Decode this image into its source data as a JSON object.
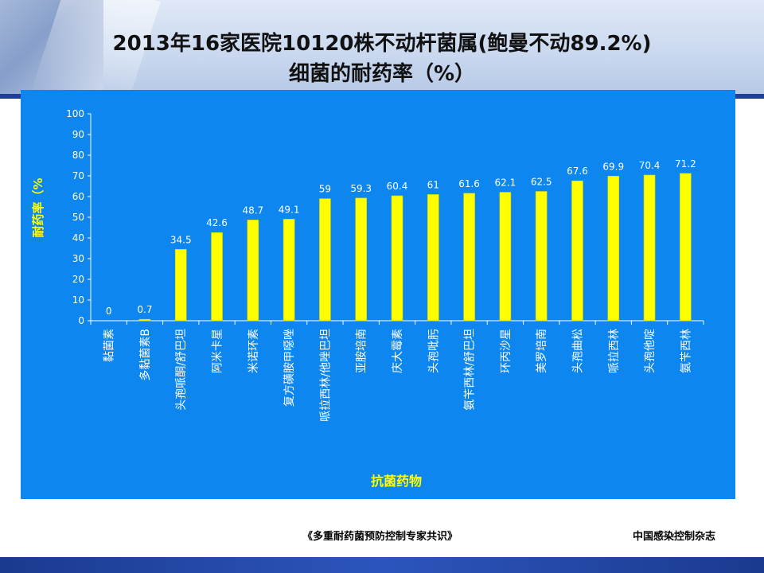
{
  "slide": {
    "title_line1": "2013年16家医院10120株不动杆菌属(鲍曼不动89.2%)",
    "title_line2": "细菌的耐药率（%）",
    "footer_source": "《多重耐药菌预防控制专家共识》",
    "footer_publisher": "中国感染控制杂志"
  },
  "colors": {
    "panel_bg": "#0e86f0",
    "bar_fill": "#ffff00",
    "axis_title": "#ffff00",
    "tick_text": "#ffffff"
  },
  "chart_data": {
    "type": "bar",
    "title": "",
    "xlabel": "抗菌药物",
    "ylabel": "耐药率（%",
    "ylim": [
      0,
      100
    ],
    "yticks": [
      0,
      10,
      20,
      30,
      40,
      50,
      60,
      70,
      80,
      90,
      100
    ],
    "grid": false,
    "legend": "none",
    "categories": [
      "黏菌素",
      "多黏菌素B",
      "头孢哌酮/舒巴坦",
      "阿米卡星",
      "米诺环素",
      "复方磺胺甲噁唑",
      "哌拉西林/他唑巴坦",
      "亚胺培南",
      "庆大霉素",
      "头孢吡肟",
      "氨苄西林/舒巴坦",
      "环丙沙星",
      "美罗培南",
      "头孢曲松",
      "哌拉西林",
      "头孢他啶",
      "氨苄西林"
    ],
    "values": [
      0,
      0.7,
      34.5,
      42.6,
      48.7,
      49.1,
      59,
      59.3,
      60.4,
      61,
      61.6,
      62.1,
      62.5,
      67.6,
      69.9,
      70.4,
      71.2
    ],
    "value_labels": [
      "0",
      "0.7",
      "34.5",
      "42.6",
      "48.7",
      "49.1",
      "59",
      "59.3",
      "60.4",
      "61",
      "61.6",
      "62.1",
      "62.5",
      "67.6",
      "69.9",
      "70.4",
      "71.2"
    ]
  }
}
